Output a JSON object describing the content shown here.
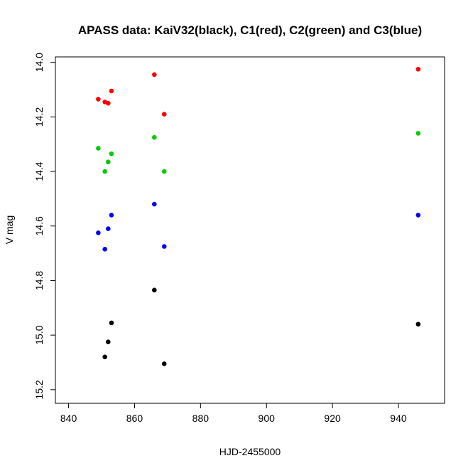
{
  "chart_data": {
    "type": "scatter",
    "title": "APASS data: KaiV32(black), C1(red), C2(green) and C3(blue)",
    "xlabel": "HJD-2455000",
    "ylabel": "V mag",
    "xlim": [
      836,
      954
    ],
    "ylim": [
      15.25,
      13.98
    ],
    "y_reversed": true,
    "grid": false,
    "x_ticks": [
      840,
      860,
      880,
      900,
      920,
      940
    ],
    "y_ticks": [
      14.0,
      14.2,
      14.4,
      14.6,
      14.8,
      15.0,
      15.2
    ],
    "x_tick_labels": [
      "840",
      "860",
      "880",
      "900",
      "920",
      "940"
    ],
    "y_tick_labels": [
      "14.0",
      "14.2",
      "14.4",
      "14.6",
      "14.8",
      "15.0",
      "15.2"
    ],
    "series": [
      {
        "color": "#000000",
        "points": [
          {
            "x": 851,
            "y": 15.08
          },
          {
            "x": 852,
            "y": 15.025
          },
          {
            "x": 853,
            "y": 14.955
          },
          {
            "x": 866,
            "y": 14.835
          },
          {
            "x": 869,
            "y": 15.105
          },
          {
            "x": 946,
            "y": 14.96
          }
        ]
      },
      {
        "color": "#ff0000",
        "points": [
          {
            "x": 849,
            "y": 14.135
          },
          {
            "x": 851,
            "y": 14.145
          },
          {
            "x": 852,
            "y": 14.15
          },
          {
            "x": 853,
            "y": 14.105
          },
          {
            "x": 866,
            "y": 14.045
          },
          {
            "x": 869,
            "y": 14.19
          },
          {
            "x": 946,
            "y": 14.025
          }
        ]
      },
      {
        "color": "#00cd00",
        "points": [
          {
            "x": 849,
            "y": 14.315
          },
          {
            "x": 851,
            "y": 14.4
          },
          {
            "x": 852,
            "y": 14.365
          },
          {
            "x": 853,
            "y": 14.335
          },
          {
            "x": 866,
            "y": 14.275
          },
          {
            "x": 869,
            "y": 14.4
          },
          {
            "x": 946,
            "y": 14.26
          }
        ]
      },
      {
        "color": "#0000ff",
        "points": [
          {
            "x": 849,
            "y": 14.625
          },
          {
            "x": 851,
            "y": 14.685
          },
          {
            "x": 852,
            "y": 14.61
          },
          {
            "x": 853,
            "y": 14.56
          },
          {
            "x": 866,
            "y": 14.52
          },
          {
            "x": 869,
            "y": 14.675
          },
          {
            "x": 946,
            "y": 14.56
          }
        ]
      }
    ]
  }
}
